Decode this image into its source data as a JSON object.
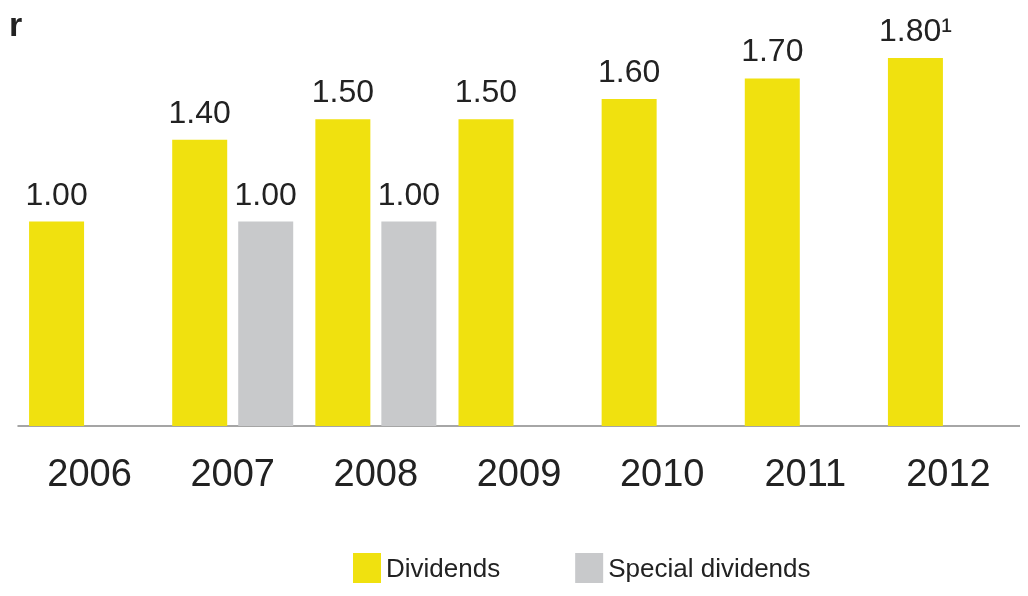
{
  "chart_data": {
    "type": "bar",
    "title": "r",
    "categories": [
      "2006",
      "2007",
      "2008",
      "2009",
      "2010",
      "2011",
      "2012"
    ],
    "series": [
      {
        "name": "Dividends",
        "color": "#f0e10f",
        "values": [
          1.0,
          1.4,
          1.5,
          1.5,
          1.6,
          1.7,
          1.8
        ],
        "value_labels": [
          "1.00",
          "1.40",
          "1.50",
          "1.50",
          "1.60",
          "1.70",
          "1.80¹"
        ]
      },
      {
        "name": "Special dividends",
        "color": "#c8c9cb",
        "values": [
          null,
          1.0,
          1.0,
          null,
          null,
          null,
          null
        ],
        "value_labels": [
          null,
          "1.00",
          "1.00",
          null,
          null,
          null,
          null
        ]
      }
    ],
    "legend": "bottom"
  }
}
